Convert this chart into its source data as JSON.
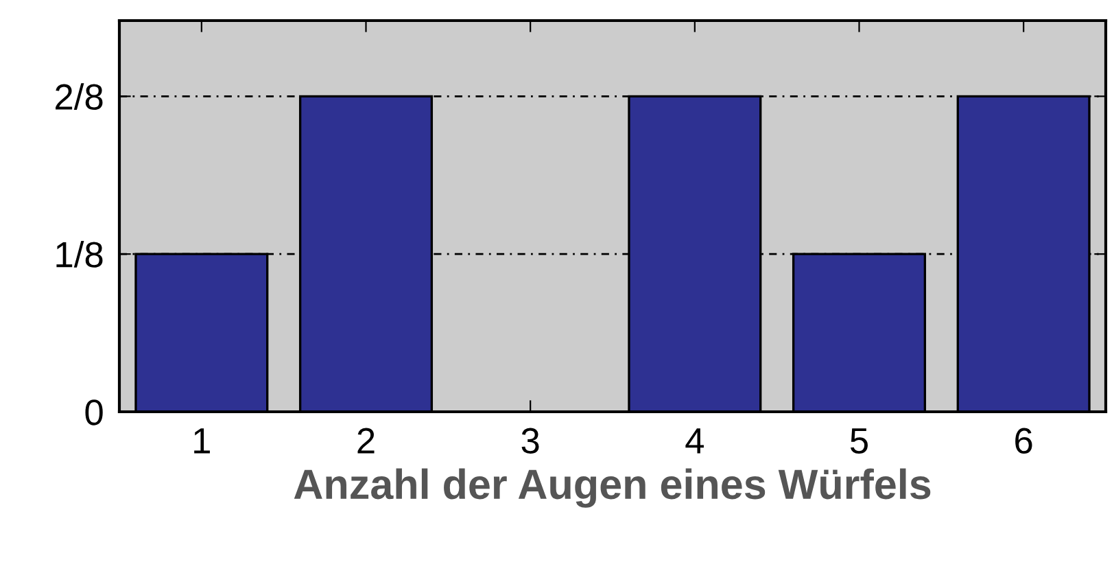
{
  "chart_data": {
    "type": "bar",
    "xlabel": "Anzahl der Augen eines Würfels",
    "categories": [
      "1",
      "2",
      "3",
      "4",
      "5",
      "6"
    ],
    "values": [
      0.125,
      0.25,
      0,
      0.25,
      0.125,
      0.25
    ],
    "color": "#2e3192",
    "ylim": [
      0,
      0.31
    ],
    "yticks": [
      0,
      {
        "value": 0.125,
        "label": "1/8"
      },
      {
        "value": 0.25,
        "label": "2/8"
      }
    ],
    "grid": "y"
  }
}
